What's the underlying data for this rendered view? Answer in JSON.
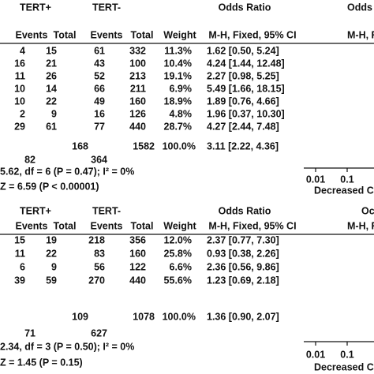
{
  "panels": [
    {
      "header": {
        "group1": "TERT+",
        "group2": "TERT-",
        "effect": "Odds Ratio",
        "effect_right": "Odds",
        "columns": [
          "Events",
          "Total",
          "Events",
          "Total",
          "Weight",
          "M-H, Fixed, 95% CI",
          "M-H, Fi"
        ]
      },
      "rows": [
        [
          "4",
          "15",
          "61",
          "332",
          "11.3%",
          "1.62 [0.50, 5.24]"
        ],
        [
          "16",
          "21",
          "43",
          "100",
          "10.4%",
          "4.24 [1.44, 12.48]"
        ],
        [
          "11",
          "26",
          "52",
          "213",
          "19.1%",
          "2.27 [0.98, 5.25]"
        ],
        [
          "10",
          "14",
          "66",
          "211",
          "6.9%",
          "5.49 [1.66, 18.15]"
        ],
        [
          "10",
          "22",
          "49",
          "160",
          "18.9%",
          "1.89 [0.76, 4.66]"
        ],
        [
          "2",
          "9",
          "16",
          "126",
          "4.8%",
          "1.96 [0.37, 10.30]"
        ],
        [
          "29",
          "61",
          "77",
          "440",
          "28.7%",
          "4.27 [2.44, 7.48]"
        ]
      ],
      "total": [
        "168",
        "1582",
        "100.0%",
        "3.11 [2.22, 4.36]"
      ],
      "events_total": [
        "82",
        "364"
      ],
      "heterogeneity": "5.62, df = 6 (P = 0.47); I² = 0%",
      "overall": "Z = 6.59 (P < 0.00001)",
      "axis": {
        "ticks": [
          "0.01",
          "0.1"
        ],
        "label": "Decreased C"
      }
    },
    {
      "header": {
        "group1": "TERT+",
        "group2": "TERT-",
        "effect": "Odds Ratio",
        "effect_right": "Oc",
        "columns": [
          "Events",
          "Total",
          "Events",
          "Total",
          "Weight",
          "M-H, Fixed, 95% CI",
          "M-H, F"
        ]
      },
      "rows": [
        [
          "15",
          "19",
          "218",
          "356",
          "12.0%",
          "2.37 [0.77, 7.30]"
        ],
        [
          "11",
          "22",
          "83",
          "160",
          "25.8%",
          "0.93 [0.38, 2.26]"
        ],
        [
          "6",
          "9",
          "56",
          "122",
          "6.6%",
          "2.36 [0.56, 9.86]"
        ],
        [
          "39",
          "59",
          "270",
          "440",
          "55.6%",
          "1.23 [0.69, 2.18]"
        ]
      ],
      "total": [
        "109",
        "1078",
        "100.0%",
        "1.36 [0.90, 2.07]"
      ],
      "events_total": [
        "71",
        "627"
      ],
      "heterogeneity": "2.34, df = 3 (P = 0.50); I² = 0%",
      "overall": "Z = 1.45 (P = 0.15)",
      "axis": {
        "ticks": [
          "0.01",
          "0.1"
        ],
        "label": "Decreased C"
      }
    }
  ]
}
